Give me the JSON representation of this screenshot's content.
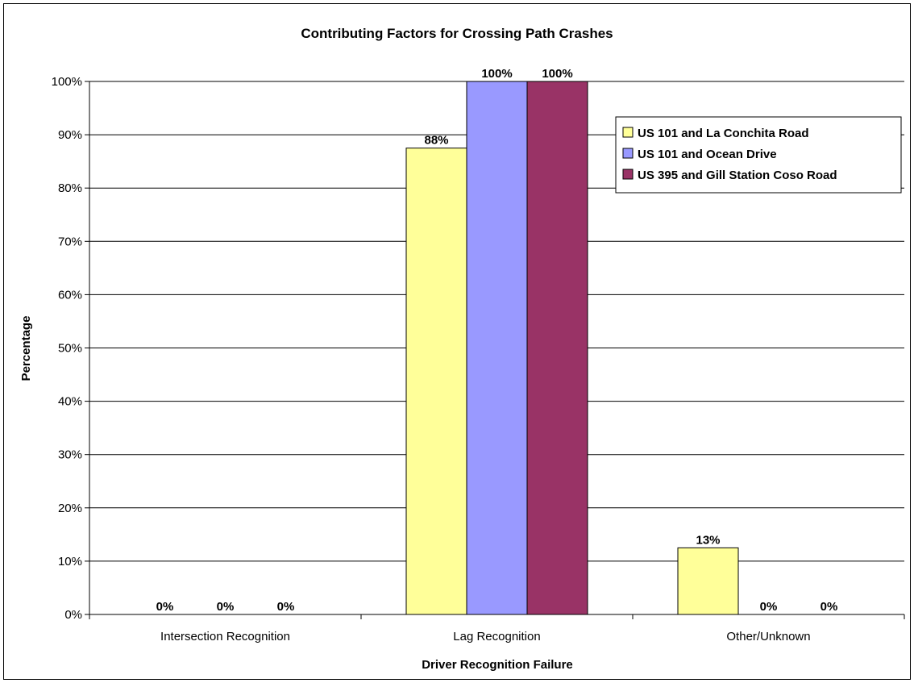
{
  "chart_data": {
    "type": "bar",
    "title": "Contributing Factors for Crossing Path Crashes",
    "xlabel": "Driver Recognition Failure",
    "ylabel": "Percentage",
    "ylim": [
      0,
      100
    ],
    "yticks": [
      "0%",
      "10%",
      "20%",
      "30%",
      "40%",
      "50%",
      "60%",
      "70%",
      "80%",
      "90%",
      "100%"
    ],
    "categories": [
      "Intersection Recognition",
      "Lag Recognition",
      "Other/Unknown"
    ],
    "series": [
      {
        "name": "US 101 and La Conchita Road",
        "color": "#FFFF99",
        "values": [
          0,
          87.5,
          12.5
        ],
        "labels": [
          "0%",
          "88%",
          "13%"
        ]
      },
      {
        "name": "US 101 and Ocean Drive",
        "color": "#9999FF",
        "values": [
          0,
          100,
          0
        ],
        "labels": [
          "0%",
          "100%",
          "0%"
        ]
      },
      {
        "name": "US 395 and Gill Station Coso Road",
        "color": "#993366",
        "values": [
          0,
          100,
          0
        ],
        "labels": [
          "0%",
          "100%",
          "0%"
        ]
      }
    ],
    "grid": true,
    "legend": "top-right"
  }
}
